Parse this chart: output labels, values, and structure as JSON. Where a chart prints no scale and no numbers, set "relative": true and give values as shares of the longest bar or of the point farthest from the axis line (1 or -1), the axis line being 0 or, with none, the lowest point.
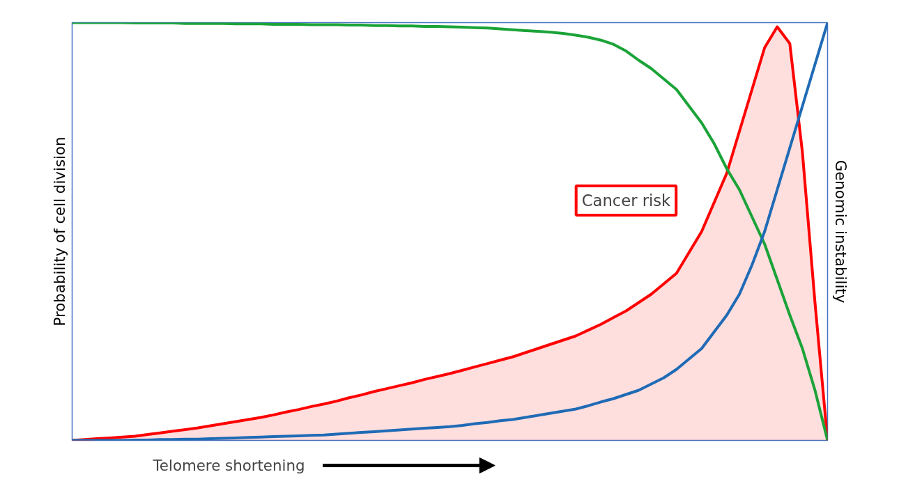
{
  "chart_data": {
    "type": "line",
    "relative": true,
    "xlabel": "Telomere shortening",
    "ylabel": "Probability of cell division",
    "y2label": "Genomic instability",
    "categories": [
      null,
      null,
      null,
      null,
      null,
      null,
      null,
      null,
      null,
      null,
      null,
      null,
      null,
      null,
      null,
      null,
      null,
      null,
      null,
      null,
      null,
      null,
      null,
      null,
      null,
      null,
      null,
      null,
      null,
      null,
      null,
      null,
      null,
      null,
      null,
      null,
      null,
      null,
      null,
      null,
      null,
      null,
      null,
      null,
      null,
      null,
      null,
      null,
      null,
      null,
      null,
      null,
      null,
      null,
      null,
      null,
      null,
      null,
      null,
      null,
      null
    ],
    "series": [
      {
        "type": "area",
        "name": "Cancer risk",
        "color": "#ff0000",
        "values": [
          0,
          0.002,
          0.004,
          0.006,
          0.008,
          0.01,
          0.014,
          0.018,
          0.022,
          0.026,
          0.03,
          0.035,
          0.04,
          0.045,
          0.05,
          0.055,
          0.061,
          0.068,
          0.074,
          0.081,
          0.087,
          0.094,
          0.102,
          0.109,
          0.117,
          0.124,
          0.131,
          0.138,
          0.146,
          0.153,
          0.16,
          0.168,
          0.176,
          0.184,
          0.192,
          0.2,
          0.21,
          0.22,
          0.23,
          0.24,
          0.25,
          0.264,
          0.278,
          0.294,
          0.31,
          0.33,
          0.35,
          0.375,
          0.4,
          0.45,
          0.5,
          0.57,
          0.64,
          0.74,
          0.84,
          0.94,
          0.99,
          0.95,
          0.69,
          0.33,
          0
        ]
      },
      {
        "color": "#1ba338",
        "values": [
          1,
          1,
          1,
          1,
          1,
          0.999,
          0.999,
          0.999,
          0.999,
          0.998,
          0.998,
          0.998,
          0.998,
          0.997,
          0.997,
          0.997,
          0.996,
          0.996,
          0.996,
          0.995,
          0.995,
          0.995,
          0.994,
          0.994,
          0.993,
          0.993,
          0.992,
          0.992,
          0.991,
          0.991,
          0.99,
          0.989,
          0.988,
          0.987,
          0.985,
          0.983,
          0.981,
          0.979,
          0.977,
          0.974,
          0.97,
          0.965,
          0.958,
          0.948,
          0.932,
          0.91,
          0.89,
          0.865,
          0.84,
          0.8,
          0.76,
          0.71,
          0.65,
          0.6,
          0.535,
          0.47,
          0.385,
          0.3,
          0.22,
          0.12,
          0
        ]
      },
      {
        "color": "#1f6bb5",
        "values": [
          0,
          0,
          0,
          0,
          0,
          0.001,
          0.001,
          0.002,
          0.002,
          0.003,
          0.003,
          0.004,
          0.005,
          0.006,
          0.007,
          0.008,
          0.009,
          0.01,
          0.011,
          0.012,
          0.013,
          0.015,
          0.017,
          0.019,
          0.021,
          0.023,
          0.025,
          0.027,
          0.029,
          0.031,
          0.033,
          0.036,
          0.04,
          0.043,
          0.047,
          0.05,
          0.055,
          0.06,
          0.065,
          0.07,
          0.075,
          0.083,
          0.092,
          0.1,
          0.11,
          0.12,
          0.135,
          0.15,
          0.17,
          0.195,
          0.22,
          0.26,
          0.3,
          0.35,
          0.42,
          0.5,
          0.6,
          0.7,
          0.8,
          0.9,
          1
        ]
      }
    ]
  }
}
